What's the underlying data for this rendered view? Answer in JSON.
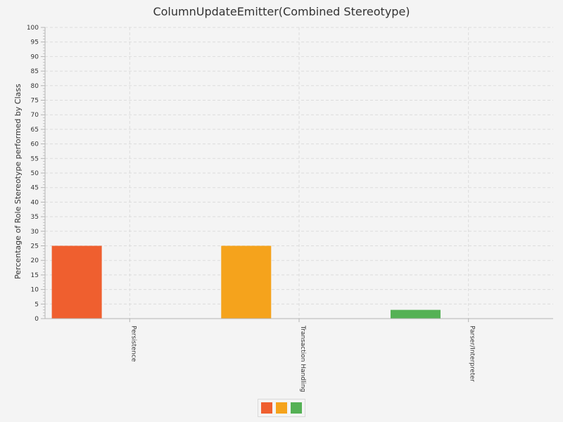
{
  "chart_data": {
    "type": "bar",
    "title": "ColumnUpdateEmitter(Combined Stereotype)",
    "xlabel": "",
    "ylabel": "Percentage of Role Stereotype performed by Class",
    "ylim": [
      0,
      100
    ],
    "ytick_step": 5,
    "categories": [
      "Persistence",
      "Transaction Handling",
      "Parser/Interpreter"
    ],
    "values": [
      25,
      25,
      3
    ],
    "colors": [
      "#ef5f2f",
      "#f5a31c",
      "#55b155"
    ],
    "grid": true,
    "legend": {
      "placement": "bottom-center",
      "entries": [
        "",
        "",
        ""
      ]
    }
  }
}
